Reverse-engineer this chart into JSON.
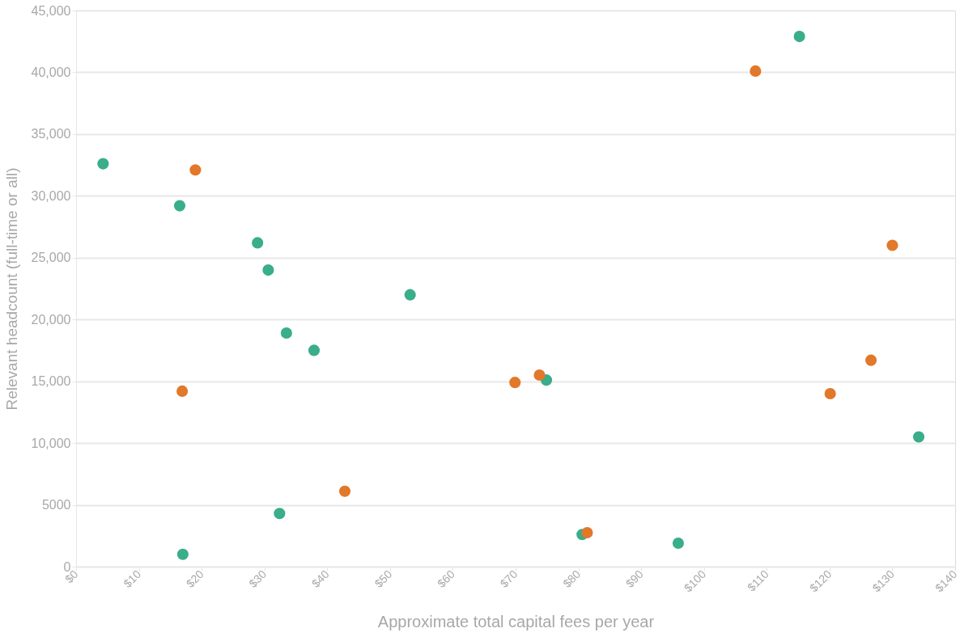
{
  "chart_data": {
    "type": "scatter",
    "xlabel": "Approximate total capital fees per year",
    "ylabel": "Relevant headcount (full-time or all)",
    "series": [
      {
        "color": "#3aad8a",
        "x": [
          4.3,
          16.5,
          28.9,
          30.6,
          33.5,
          37.9,
          53.2,
          74.9,
          115.2,
          134.2,
          17.0,
          32.4,
          80.6,
          95.9
        ],
        "values": [
          32600,
          29200,
          26200,
          24000,
          18900,
          17500,
          22000,
          15100,
          42900,
          10500,
          1000,
          4300,
          2600,
          1900
        ]
      },
      {
        "color": "#e2782a",
        "x": [
          19.0,
          16.9,
          42.8,
          69.9,
          73.8,
          81.4,
          108.2,
          130.0,
          120.1,
          126.6
        ],
        "values": [
          32100,
          14200,
          6100,
          14900,
          15500,
          2750,
          40100,
          26000,
          14000,
          16700
        ]
      }
    ],
    "xlim": [
      0,
      140
    ],
    "xticks": [
      {
        "value": 0,
        "label": "$0"
      },
      {
        "value": 10,
        "label": "$10"
      },
      {
        "value": 20,
        "label": "$20"
      },
      {
        "value": 30,
        "label": "$30"
      },
      {
        "value": 40,
        "label": "$40"
      },
      {
        "value": 50,
        "label": "$50"
      },
      {
        "value": 60,
        "label": "$60"
      },
      {
        "value": 70,
        "label": "$70"
      },
      {
        "value": 80,
        "label": "$80"
      },
      {
        "value": 90,
        "label": "$90"
      },
      {
        "value": 100,
        "label": "$100"
      },
      {
        "value": 110,
        "label": "$110"
      },
      {
        "value": 120,
        "label": "$120"
      },
      {
        "value": 130,
        "label": "$130"
      },
      {
        "value": 140,
        "label": "$140"
      }
    ],
    "ylim": [
      0,
      45000
    ],
    "yticks": [
      0,
      5000,
      {
        "value": 10000,
        "label": "10,000"
      },
      {
        "value": 15000,
        "label": "15,000"
      },
      {
        "value": 20000,
        "label": "20,000"
      },
      {
        "value": 25000,
        "label": "25,000"
      },
      {
        "value": 30000,
        "label": "30,000"
      },
      {
        "value": 35000,
        "label": "35,000"
      },
      {
        "value": 40000,
        "label": "40,000"
      },
      {
        "value": 45000,
        "label": "45,000"
      }
    ],
    "grid": "y",
    "marker": "circle"
  }
}
